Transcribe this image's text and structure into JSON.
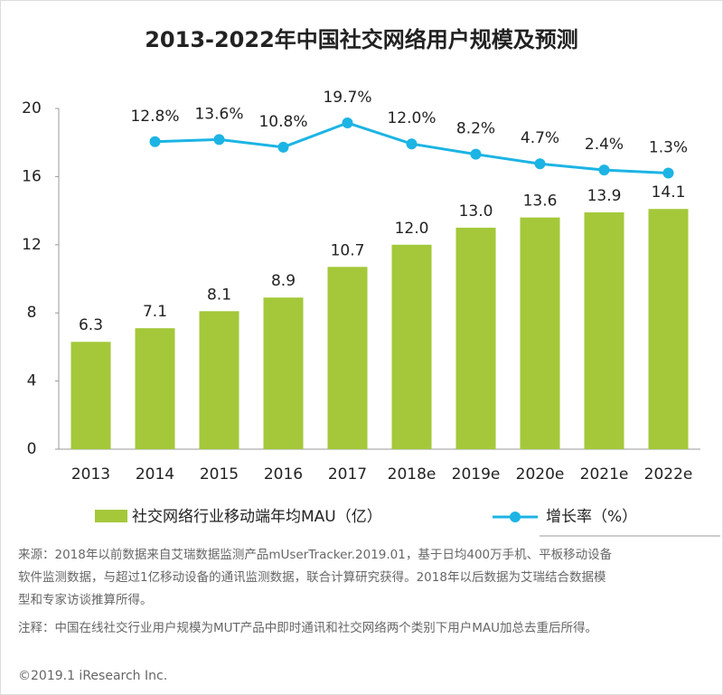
{
  "chart_data": {
    "type": "bar",
    "title": "2013-2022年中国社交网络用户规模及预测",
    "categories": [
      "2013",
      "2014",
      "2015",
      "2016",
      "2017",
      "2018e",
      "2019e",
      "2020e",
      "2021e",
      "2022e"
    ],
    "series": [
      {
        "name": "社交网络行业移动端年均MAU（亿）",
        "color": "#a4c83a",
        "values": [
          6.3,
          7.1,
          8.1,
          8.9,
          10.7,
          12.0,
          13.0,
          13.6,
          13.9,
          14.1
        ],
        "value_labels": [
          "6.3",
          "7.1",
          "8.1",
          "8.9",
          "10.7",
          "12.0",
          "13.0",
          "13.6",
          "13.9",
          "14.1"
        ]
      },
      {
        "name": "增长率（%）",
        "color": "#1cb4e4",
        "axis": "y2",
        "type": "line",
        "values": [
          null,
          12.8,
          13.6,
          10.8,
          19.7,
          12.0,
          8.2,
          4.7,
          2.4,
          1.3
        ],
        "value_labels": [
          null,
          "12.8%",
          "13.6%",
          "10.8%",
          "19.7%",
          "12.0%",
          "8.2%",
          "4.7%",
          "2.4%",
          "1.3%"
        ]
      }
    ],
    "ylim": [
      0,
      20
    ],
    "yticks": [
      0,
      4,
      8,
      12,
      16,
      20
    ],
    "y2lim": [
      -100,
      25
    ],
    "notes": [
      "来源：2018年以前数据来自艾瑞数据监测产品mUserTracker.2019.01，基于日均400万手机、平板移动设备",
      "软件监测数据，与超过1亿移动设备的通讯监测数据，联合计算研究获得。2018年以后数据为艾瑞结合数据模",
      "型和专家访谈推算所得。",
      "注释：中国在线社交行业用户规模为MUT产品中即时通讯和社交网络两个类别下用户MAU加总去重后所得。"
    ],
    "footer": "©2019.1 iResearch Inc."
  }
}
